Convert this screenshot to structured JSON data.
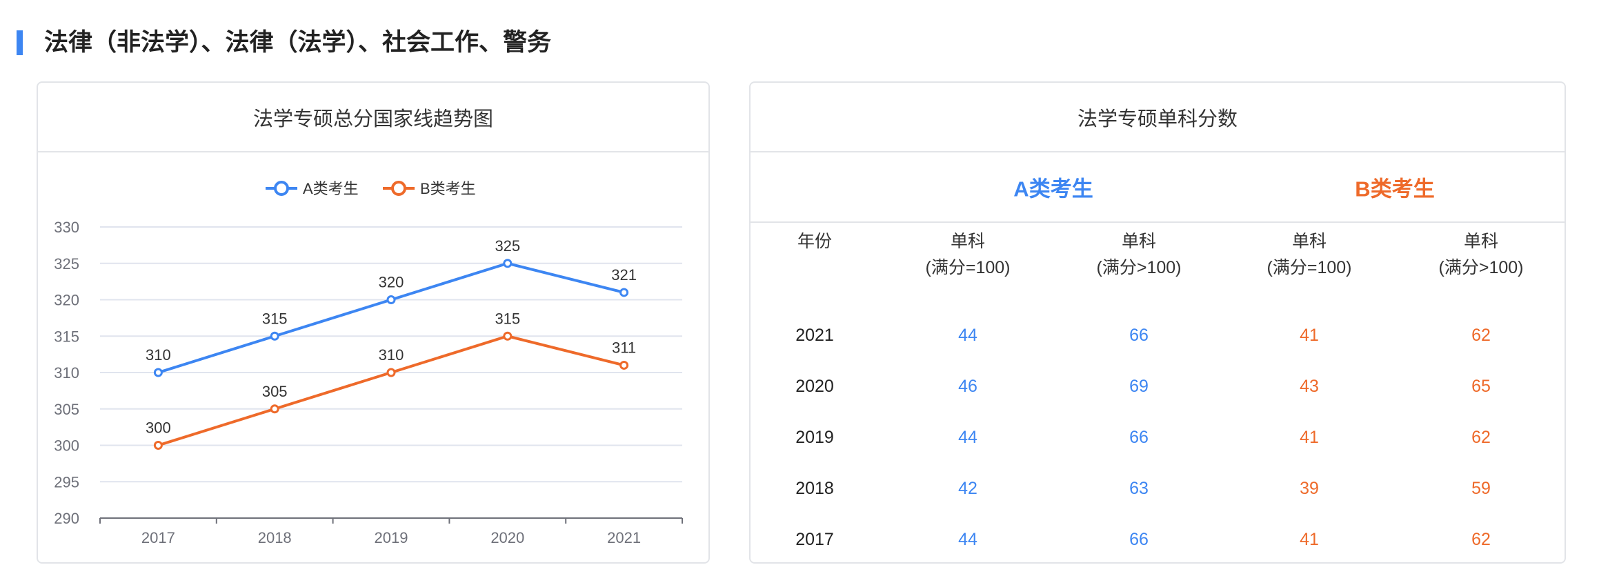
{
  "section_title": "法律（非法学）、法律（法学）、社会工作、警务",
  "colors": {
    "a": "#3d86f2",
    "b": "#ee6a2a",
    "accent": "#3d86f2"
  },
  "chart_card": {
    "title": "法学专硕总分国家线趋势图"
  },
  "chart_data": {
    "type": "line",
    "title": "法学专硕总分国家线趋势图",
    "categories": [
      "2017",
      "2018",
      "2019",
      "2020",
      "2021"
    ],
    "series": [
      {
        "name": "A类考生",
        "values": [
          310,
          315,
          320,
          325,
          321
        ]
      },
      {
        "name": "B类考生",
        "values": [
          300,
          305,
          310,
          315,
          311
        ]
      }
    ],
    "yticks": [
      "290",
      "295",
      "300",
      "305",
      "310",
      "315",
      "320",
      "325",
      "330"
    ],
    "ylim": [
      290,
      330
    ],
    "grid": true,
    "legend": "top-center",
    "xlabel": "",
    "ylabel": ""
  },
  "table_card": {
    "title": "法学专硕单科分数",
    "group_a": "A类考生",
    "group_b": "B类考生",
    "headers": [
      {
        "l1": "年份",
        "l2": ""
      },
      {
        "l1": "单科",
        "l2": "(满分=100)"
      },
      {
        "l1": "单科",
        "l2": "(满分>100)"
      },
      {
        "l1": "单科",
        "l2": "(满分=100)"
      },
      {
        "l1": "单科",
        "l2": "(满分>100)"
      }
    ],
    "rows": [
      [
        "2021",
        "44",
        "66",
        "41",
        "62"
      ],
      [
        "2020",
        "46",
        "69",
        "43",
        "65"
      ],
      [
        "2019",
        "44",
        "66",
        "41",
        "62"
      ],
      [
        "2018",
        "42",
        "63",
        "39",
        "59"
      ],
      [
        "2017",
        "44",
        "66",
        "41",
        "62"
      ]
    ]
  }
}
